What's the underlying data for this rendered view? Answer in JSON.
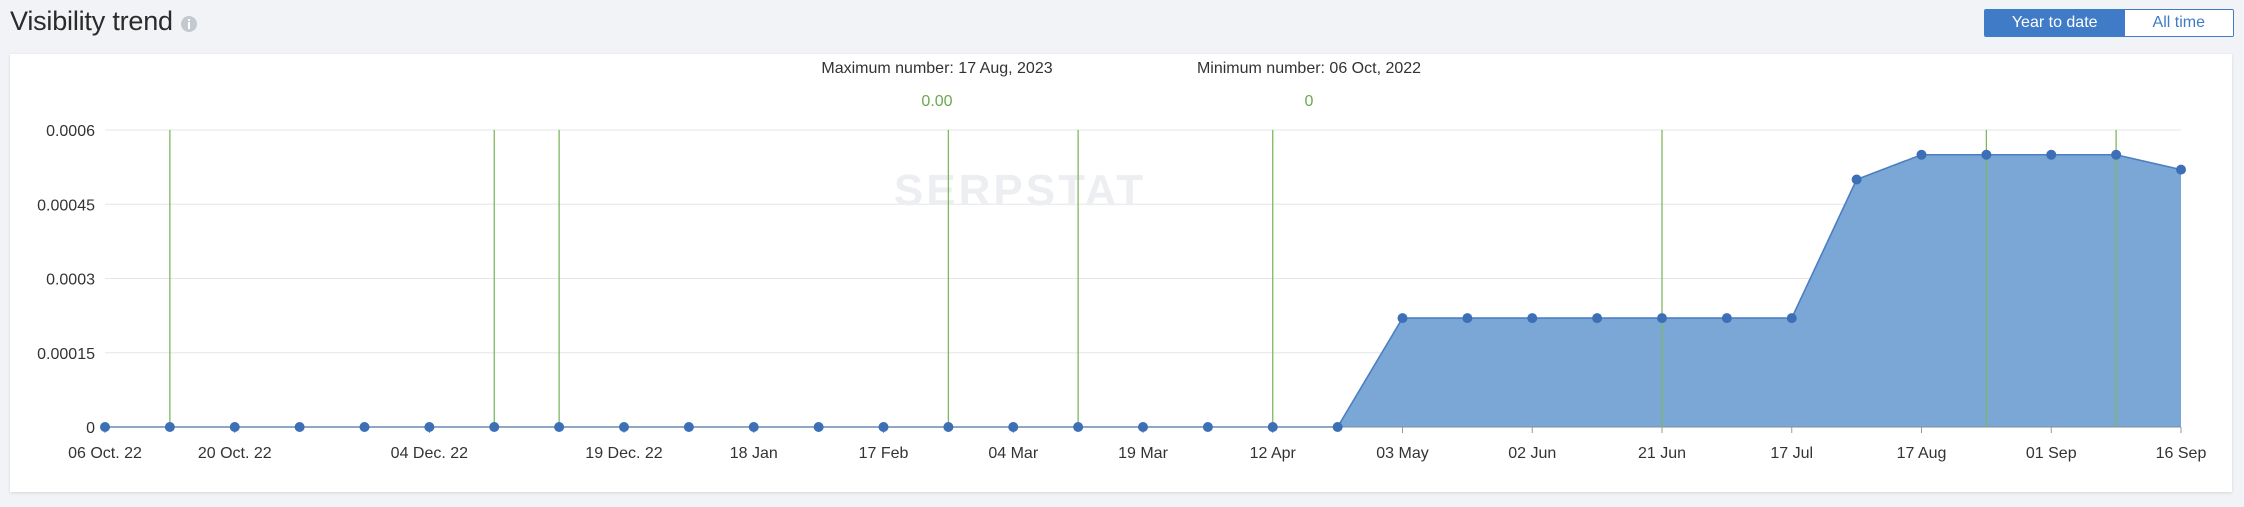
{
  "header": {
    "title": "Visibility trend",
    "toggle": {
      "options": [
        "Year to date",
        "All time"
      ],
      "active": "Year to date"
    }
  },
  "summary": {
    "max_label": "Maximum number: 17 Aug, 2023",
    "max_value": "0.00",
    "min_label": "Minimum number: 06 Oct, 2022",
    "min_value": "0"
  },
  "watermark": "SERPSTAT",
  "colors": {
    "area_fill": "#7ba7d7",
    "line": "#4a7fc1",
    "point": "#3c6fb5",
    "event_line": "#7cb860",
    "grid": "#e3e5e8",
    "active_button": "#3f7bc6"
  },
  "chart_data": {
    "type": "area",
    "title": "Visibility trend",
    "xlabel": "",
    "ylabel": "",
    "ylim": [
      0,
      0.0006
    ],
    "yticks": [
      "0.0006",
      "0.00045",
      "0.0003",
      "0.00015",
      "0"
    ],
    "ytick_values": [
      0.0006,
      0.00045,
      0.0003,
      0.00015,
      0
    ],
    "xtick_labels": [
      "06 Oct. 22",
      "20 Oct. 22",
      "04 Dec. 22",
      "19 Dec. 22",
      "18 Jan",
      "17 Feb",
      "04 Mar",
      "19 Mar",
      "12 Apr",
      "03 May",
      "02 Jun",
      "21 Jun",
      "17 Jul",
      "17 Aug",
      "01 Sep",
      "16 Sep"
    ],
    "xtick_positions": [
      0,
      2,
      5,
      8,
      10,
      12,
      14,
      16,
      18,
      20,
      22,
      24,
      26,
      28,
      30,
      32
    ],
    "values": [
      0,
      0,
      0,
      0,
      0,
      0,
      0,
      0,
      0,
      0,
      0,
      0,
      0,
      0,
      0,
      0,
      0,
      0,
      0,
      0,
      0.00022,
      0.00022,
      0.00022,
      0.00022,
      0.00022,
      0.00022,
      0.00022,
      0.0005,
      0.00055,
      0.00055,
      0.00055,
      0.00055,
      0.00052
    ],
    "event_lines_at": [
      1,
      6,
      7,
      13,
      15,
      18,
      24,
      29,
      31
    ],
    "grid": true,
    "legend": false
  }
}
